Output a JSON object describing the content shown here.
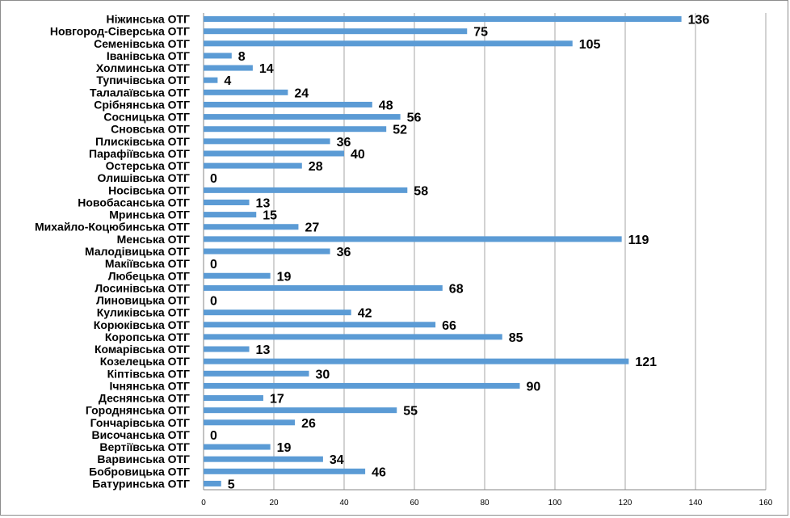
{
  "chart_data": {
    "type": "bar",
    "orientation": "horizontal",
    "title": "",
    "xlabel": "",
    "ylabel": "",
    "xlim": [
      0,
      160
    ],
    "x_ticks": [
      0,
      20,
      40,
      60,
      80,
      100,
      120,
      140,
      160
    ],
    "grid": "vertical",
    "legend": "none",
    "bar_color": "#5b9bd5",
    "categories": [
      "Ніжинська ОТГ",
      "Новгород-Сіверська ОТГ",
      "Семенівська ОТГ",
      "Іванівська ОТГ",
      "Холминська ОТГ",
      "Тупичівська ОТГ",
      "Талалаївська ОТГ",
      "Срібнянська ОТГ",
      "Сосницька ОТГ",
      "Сновська ОТГ",
      "Плисківська ОТГ",
      "Парафіївська ОТГ",
      "Остерська ОТГ",
      "Олишівська ОТГ",
      "Носівська ОТГ",
      "Новобасанська ОТГ",
      "Мринська ОТГ",
      "Михайло-Коцюбинська ОТГ",
      "Менська ОТГ",
      "Малодівицька ОТГ",
      "Макіївська ОТГ",
      "Любецька ОТГ",
      "Лосинівська ОТГ",
      "Линовицька ОТГ",
      "Куликівська ОТГ",
      "Корюківська ОТГ",
      "Коропська ОТГ",
      "Комарівська ОТГ",
      "Козелецька ОТГ",
      "Кіптівська ОТГ",
      "Ічнянська ОТГ",
      "Деснянська ОТГ",
      "Городнянська ОТГ",
      "Гончарівська ОТГ",
      "Височанська ОТГ",
      "Вертіївська ОТГ",
      "Варвинська ОТГ",
      "Бобровицька ОТГ",
      "Батуринська ОТГ"
    ],
    "values": [
      136,
      75,
      105,
      8,
      14,
      4,
      24,
      48,
      56,
      52,
      36,
      40,
      28,
      0,
      58,
      13,
      15,
      27,
      119,
      36,
      0,
      19,
      68,
      0,
      42,
      66,
      85,
      13,
      121,
      30,
      90,
      17,
      55,
      26,
      0,
      19,
      34,
      46,
      5
    ]
  }
}
